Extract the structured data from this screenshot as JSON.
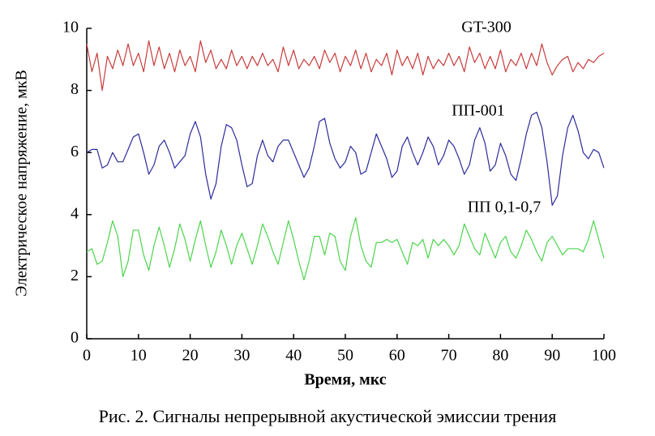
{
  "chart_data": {
    "type": "line",
    "caption": "Рис. 2. Сигналы непрерывной акустической эмиссии трения",
    "x_label": "Время, мкс",
    "y_label": "Электрическое напряжение, мкВ",
    "xlim": [
      0,
      100
    ],
    "ylim": [
      0,
      10
    ],
    "xticks": [
      0,
      10,
      20,
      30,
      40,
      50,
      60,
      70,
      80,
      90,
      100
    ],
    "yticks": [
      0,
      2,
      4,
      6,
      8,
      10
    ],
    "grid": false,
    "x": [
      0,
      1,
      2,
      3,
      4,
      5,
      6,
      7,
      8,
      9,
      10,
      11,
      12,
      13,
      14,
      15,
      16,
      17,
      18,
      19,
      20,
      21,
      22,
      23,
      24,
      25,
      26,
      27,
      28,
      29,
      30,
      31,
      32,
      33,
      34,
      35,
      36,
      37,
      38,
      39,
      40,
      41,
      42,
      43,
      44,
      45,
      46,
      47,
      48,
      49,
      50,
      51,
      52,
      53,
      54,
      55,
      56,
      57,
      58,
      59,
      60,
      61,
      62,
      63,
      64,
      65,
      66,
      67,
      68,
      69,
      70,
      71,
      72,
      73,
      74,
      75,
      76,
      77,
      78,
      79,
      80,
      81,
      82,
      83,
      84,
      85,
      86,
      87,
      88,
      89,
      90,
      91,
      92,
      93,
      94,
      95,
      96,
      97,
      98,
      99,
      100
    ],
    "series": [
      {
        "name": "GT-300",
        "color": "#c83c3c",
        "values": [
          9.5,
          8.6,
          9.2,
          8.0,
          9.1,
          8.7,
          9.3,
          8.8,
          9.5,
          8.8,
          9.2,
          8.6,
          9.6,
          8.8,
          9.4,
          8.7,
          9.2,
          8.6,
          9.3,
          8.8,
          9.1,
          8.6,
          9.6,
          8.9,
          9.3,
          8.7,
          9.0,
          8.7,
          9.3,
          8.8,
          9.1,
          8.7,
          9.1,
          8.8,
          9.2,
          8.8,
          9.0,
          8.6,
          9.4,
          8.8,
          9.3,
          8.7,
          9.0,
          8.8,
          9.1,
          8.7,
          9.3,
          8.9,
          9.2,
          8.6,
          9.1,
          8.8,
          9.3,
          8.7,
          9.2,
          8.6,
          9.0,
          8.8,
          9.2,
          8.5,
          9.3,
          8.8,
          9.1,
          8.7,
          9.2,
          8.5,
          9.1,
          8.7,
          9.0,
          8.8,
          9.2,
          8.8,
          9.1,
          8.6,
          9.4,
          8.9,
          9.2,
          8.7,
          9.1,
          8.7,
          9.3,
          8.6,
          9.0,
          8.8,
          9.2,
          8.7,
          9.2,
          8.8,
          9.5,
          8.9,
          8.5,
          8.8,
          9.0,
          9.1,
          8.6,
          8.9,
          8.7,
          9.0,
          8.9,
          9.1,
          9.2
        ]
      },
      {
        "name": "ПП-001",
        "color": "#2b2b9c",
        "values": [
          6.0,
          6.1,
          6.1,
          5.5,
          5.6,
          6.0,
          5.7,
          5.7,
          6.1,
          6.5,
          6.6,
          6.0,
          5.3,
          5.6,
          6.2,
          6.4,
          6.0,
          5.5,
          5.7,
          5.9,
          6.6,
          7.0,
          6.5,
          5.3,
          4.5,
          5.0,
          6.2,
          6.9,
          6.8,
          6.4,
          5.6,
          4.9,
          5.0,
          5.9,
          6.4,
          5.9,
          5.7,
          6.2,
          6.4,
          6.4,
          6.0,
          5.6,
          5.2,
          5.5,
          6.2,
          7.0,
          7.1,
          6.3,
          5.8,
          5.5,
          5.7,
          6.2,
          6.0,
          5.3,
          5.4,
          6.0,
          6.6,
          6.2,
          5.8,
          5.2,
          5.4,
          6.2,
          6.5,
          6.0,
          5.6,
          6.0,
          6.5,
          6.2,
          5.6,
          5.9,
          6.4,
          6.2,
          5.8,
          5.3,
          5.6,
          6.4,
          6.8,
          6.3,
          5.4,
          5.6,
          6.3,
          5.9,
          5.3,
          5.1,
          5.8,
          6.6,
          7.2,
          7.3,
          6.8,
          5.7,
          4.3,
          4.6,
          5.9,
          6.8,
          7.2,
          6.7,
          6.0,
          5.8,
          6.1,
          6.0,
          5.5
        ]
      },
      {
        "name": "ПП 0,1-0,7",
        "color": "#4cd44c",
        "values": [
          2.8,
          2.9,
          2.4,
          2.5,
          3.1,
          3.8,
          3.3,
          2.0,
          2.5,
          3.5,
          3.5,
          2.7,
          2.2,
          3.0,
          3.6,
          3.0,
          2.3,
          2.9,
          3.7,
          3.2,
          2.5,
          3.2,
          3.8,
          3.0,
          2.3,
          2.8,
          3.5,
          3.0,
          2.4,
          3.0,
          3.4,
          2.9,
          2.4,
          3.0,
          3.7,
          3.3,
          2.8,
          2.4,
          3.1,
          3.8,
          3.2,
          2.5,
          1.9,
          2.5,
          3.3,
          3.3,
          2.7,
          3.4,
          3.3,
          2.5,
          2.2,
          3.3,
          3.9,
          3.0,
          2.5,
          2.3,
          3.1,
          3.1,
          3.2,
          3.1,
          3.2,
          2.8,
          2.4,
          3.1,
          3.0,
          3.2,
          2.6,
          3.2,
          3.0,
          3.2,
          3.0,
          2.7,
          3.0,
          3.7,
          3.3,
          2.9,
          2.7,
          3.4,
          3.0,
          2.6,
          3.1,
          3.3,
          2.8,
          2.6,
          3.0,
          3.5,
          3.2,
          2.8,
          2.5,
          3.1,
          3.3,
          3.0,
          2.7,
          2.9,
          2.9,
          2.9,
          2.8,
          3.2,
          3.8,
          3.2,
          2.6
        ]
      }
    ]
  }
}
